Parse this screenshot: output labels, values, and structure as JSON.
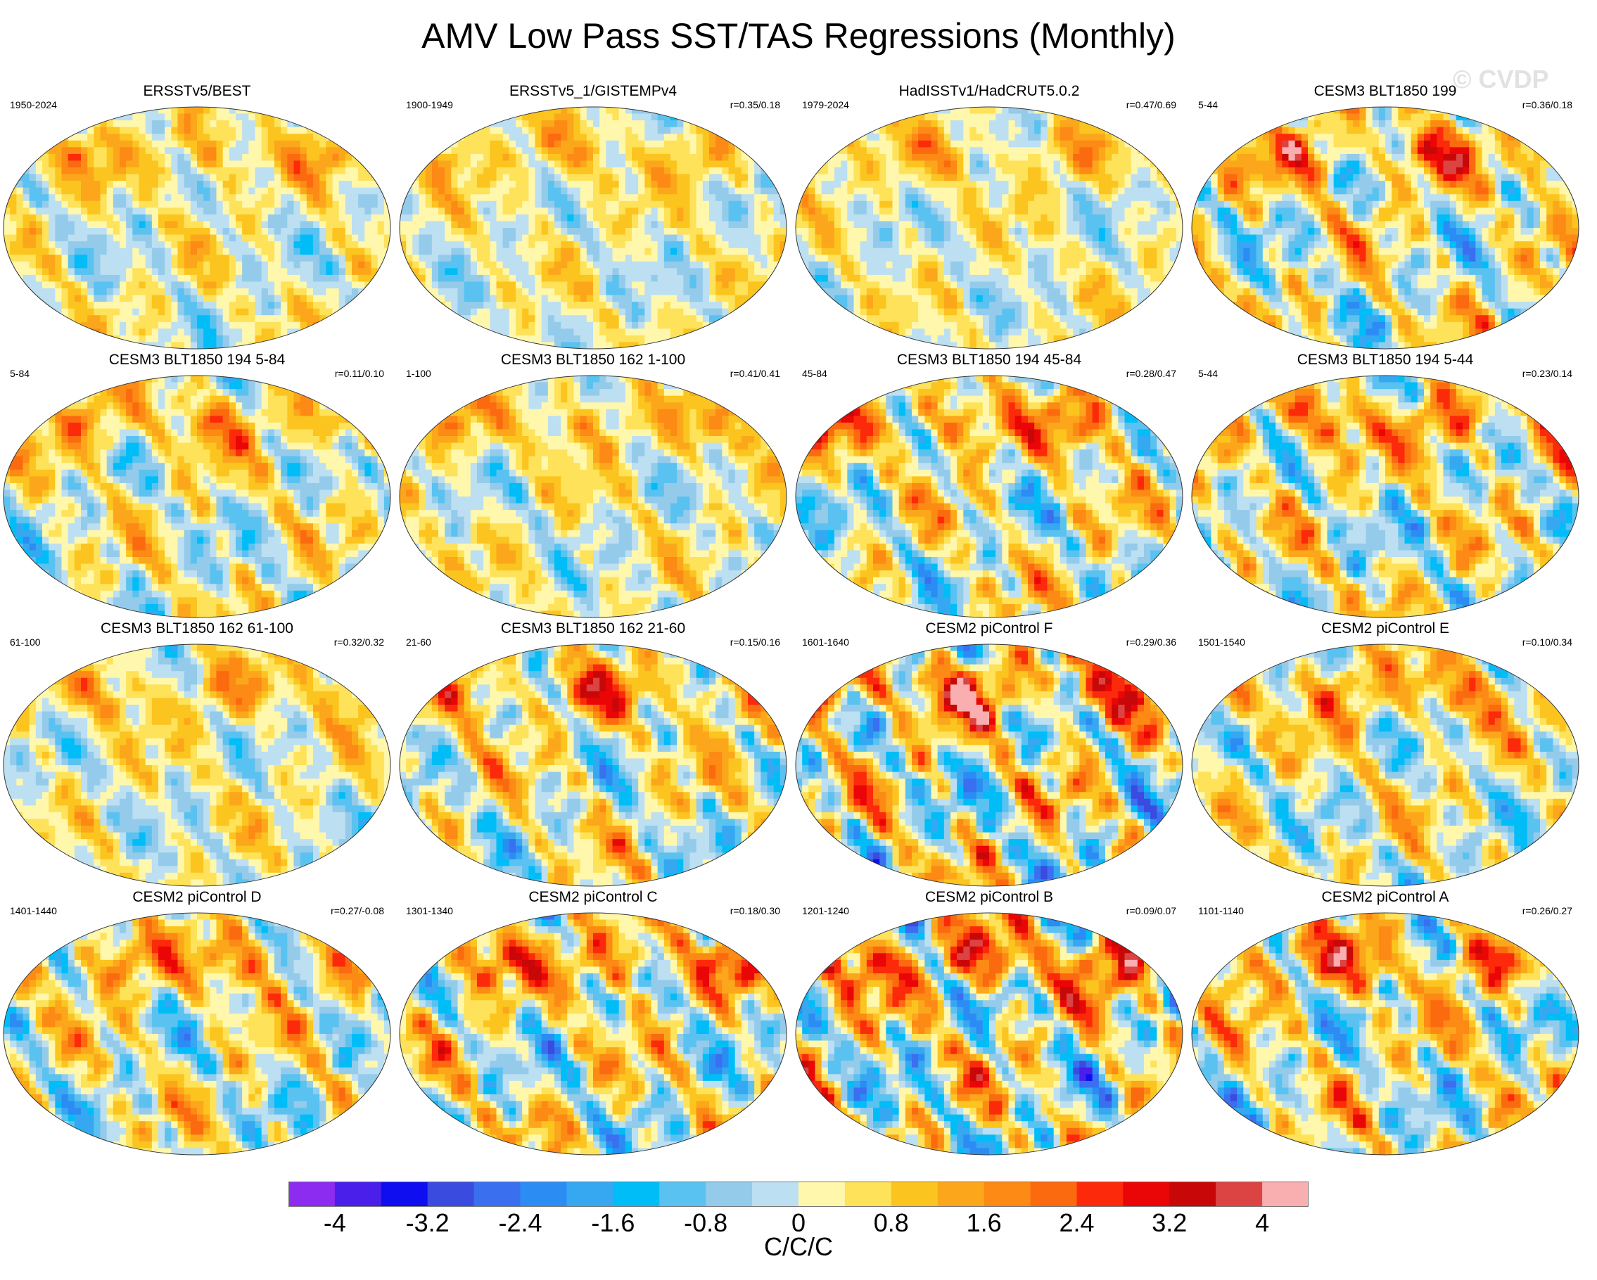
{
  "chart_data": {
    "type": "heatmap",
    "title": "AMV Low Pass SST/TAS Regressions (Monthly)",
    "watermark": "© CVDP",
    "projection": "robinson-global-map",
    "units": "C/C/C",
    "colorbar": {
      "levels": [
        -4.4,
        -4,
        -3.6,
        -3.2,
        -2.8,
        -2.4,
        -2,
        -1.6,
        -1.2,
        -0.8,
        -0.4,
        0,
        0.4,
        0.8,
        1.2,
        1.6,
        2,
        2.4,
        2.8,
        3.2,
        3.6,
        4,
        4.4
      ],
      "tick_labels": [
        "-4",
        "-3.2",
        "-2.4",
        "-1.6",
        "-0.8",
        "0",
        "0.8",
        "1.6",
        "2.4",
        "3.2",
        "4"
      ],
      "tick_values": [
        -4,
        -3.2,
        -2.4,
        -1.6,
        -0.8,
        0,
        0.8,
        1.6,
        2.4,
        3.2,
        4
      ],
      "colors": [
        "#8b2cf0",
        "#4a1fea",
        "#0e0ef0",
        "#3a4be0",
        "#3a6ff0",
        "#2b8cf4",
        "#36a8f2",
        "#00bdf7",
        "#5ac2f0",
        "#94cbea",
        "#bcdff2",
        "#fff7ac",
        "#fde25a",
        "#fcc41f",
        "#fca71b",
        "#fc8a14",
        "#fc6a10",
        "#fc2a0a",
        "#ea0606",
        "#c80808",
        "#dc4444",
        "#f9aeb0"
      ]
    },
    "panels": [
      {
        "title": "ERSSTv5/BEST",
        "period": "1950-2024",
        "corr": "",
        "amp": 0.9,
        "seed": 1
      },
      {
        "title": "ERSSTv5_1/GISTEMPv4",
        "period": "1900-1949",
        "corr": "r=0.35/0.18",
        "amp": 0.8,
        "seed": 2
      },
      {
        "title": "HadISSTv1/HadCRUT5.0.2",
        "period": "1979-2024",
        "corr": "r=0.47/0.69",
        "amp": 0.8,
        "seed": 3
      },
      {
        "title": "CESM3 BLT1850 199",
        "period": "5-44",
        "corr": "r=0.36/0.18",
        "amp": 1.4,
        "seed": 4
      },
      {
        "title": "CESM3 BLT1850 194 5-84",
        "period": "5-84",
        "corr": "r=0.11/0.10",
        "amp": 1.1,
        "seed": 5
      },
      {
        "title": "CESM3 BLT1850 162 1-100",
        "period": "1-100",
        "corr": "r=0.41/0.41",
        "amp": 0.9,
        "seed": 6
      },
      {
        "title": "CESM3 BLT1850 194 45-84",
        "period": "45-84",
        "corr": "r=0.28/0.47",
        "amp": 1.4,
        "seed": 7
      },
      {
        "title": "CESM3 BLT1850 194 5-44",
        "period": "5-44",
        "corr": "r=0.23/0.14",
        "amp": 1.4,
        "seed": 8
      },
      {
        "title": "CESM3 BLT1850 162 61-100",
        "period": "61-100",
        "corr": "r=0.32/0.32",
        "amp": 0.9,
        "seed": 9
      },
      {
        "title": "CESM3 BLT1850 162 21-60",
        "period": "21-60",
        "corr": "r=0.15/0.16",
        "amp": 1.3,
        "seed": 10
      },
      {
        "title": "CESM2 piControl F",
        "period": "1601-1640",
        "corr": "r=0.29/0.36",
        "amp": 1.8,
        "seed": 11
      },
      {
        "title": "CESM2 piControl E",
        "period": "1501-1540",
        "corr": "r=0.10/0.34",
        "amp": 1.2,
        "seed": 12
      },
      {
        "title": "CESM2 piControl D",
        "period": "1401-1440",
        "corr": "r=0.27/-0.08",
        "amp": 1.3,
        "seed": 13
      },
      {
        "title": "CESM2 piControl C",
        "period": "1301-1340",
        "corr": "r=0.18/0.30",
        "amp": 1.5,
        "seed": 14
      },
      {
        "title": "CESM2 piControl B",
        "period": "1201-1240",
        "corr": "r=0.09/0.07",
        "amp": 1.8,
        "seed": 15
      },
      {
        "title": "CESM2 piControl A",
        "period": "1101-1140",
        "corr": "r=0.26/0.27",
        "amp": 1.5,
        "seed": 16
      }
    ]
  }
}
